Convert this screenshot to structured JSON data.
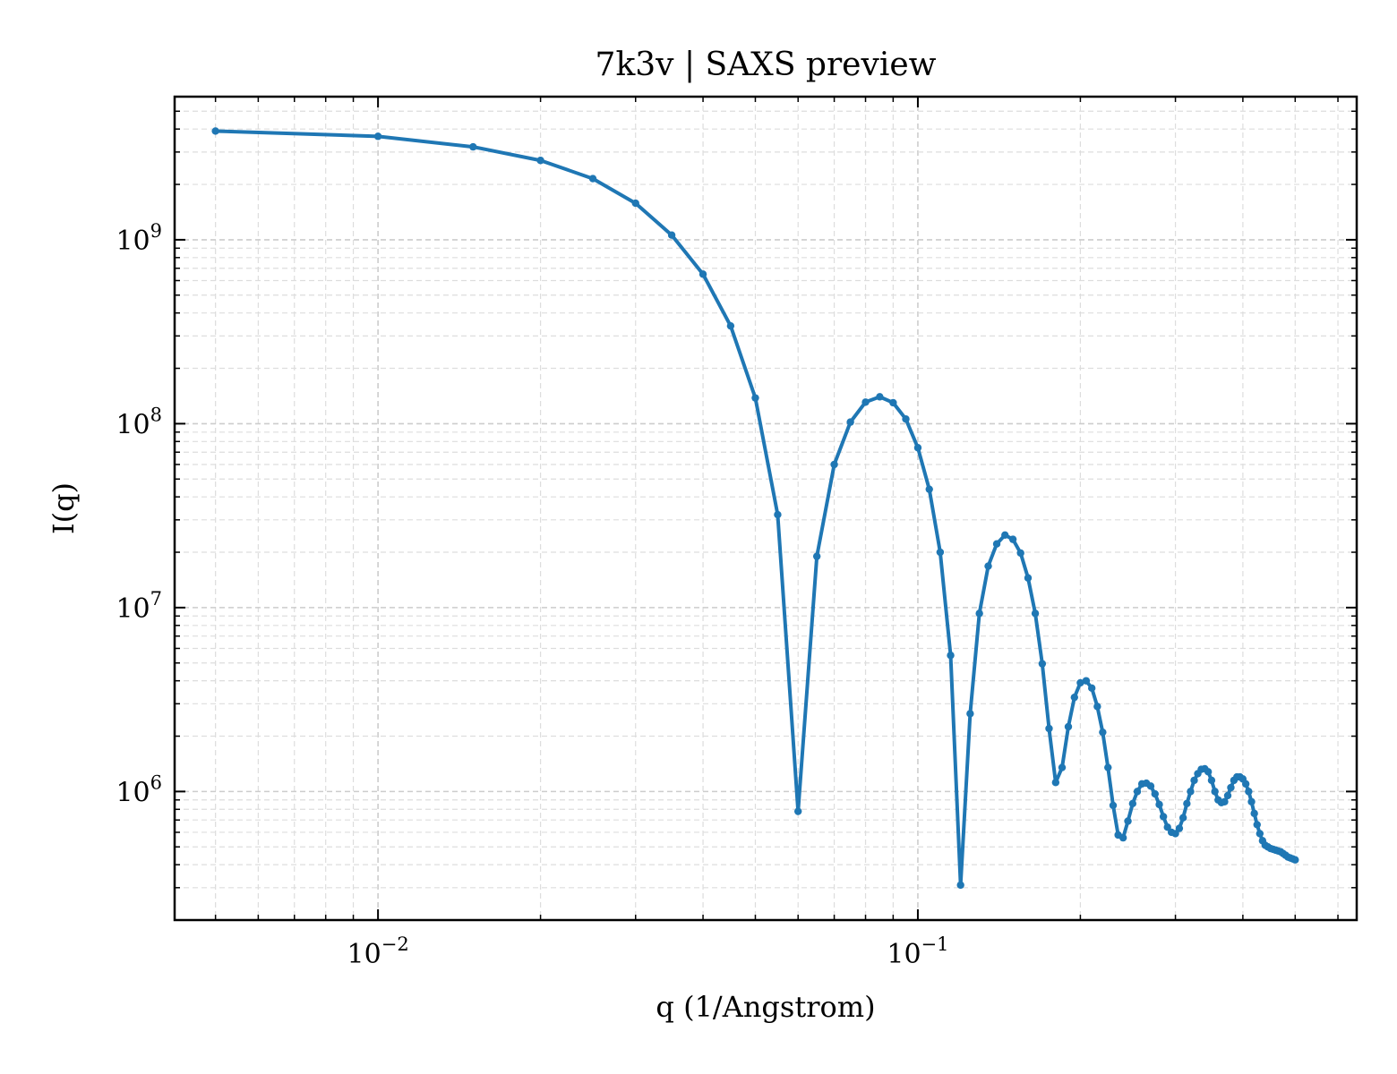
{
  "chart_data": {
    "type": "line",
    "title": "7k3v | SAXS preview",
    "xlabel": "q (1/Angstrom)",
    "ylabel": "I(q)",
    "xscale": "log",
    "yscale": "log",
    "xlim": [
      0.0042,
      0.65
    ],
    "ylim": [
      200000,
      6000000000
    ],
    "grid": true,
    "legend": "none",
    "color": "#1f77b4",
    "x_ticks": [
      {
        "value": 0.01,
        "base": "10",
        "exp": "−2"
      },
      {
        "value": 0.1,
        "base": "10",
        "exp": "−1"
      }
    ],
    "y_ticks": [
      {
        "value": 1000000,
        "base": "10",
        "exp": "6"
      },
      {
        "value": 10000000,
        "base": "10",
        "exp": "7"
      },
      {
        "value": 100000000,
        "base": "10",
        "exp": "8"
      },
      {
        "value": 1000000000,
        "base": "10",
        "exp": "9"
      }
    ],
    "series": [
      {
        "points": [
          [
            0.005,
            3900000000
          ],
          [
            0.01,
            3650000000
          ],
          [
            0.015,
            3200000000
          ],
          [
            0.02,
            2700000000
          ],
          [
            0.025,
            2150000000
          ],
          [
            0.03,
            1580000000
          ],
          [
            0.035,
            1060000000
          ],
          [
            0.04,
            650000000
          ],
          [
            0.045,
            340000000
          ],
          [
            0.05,
            138000000
          ],
          [
            0.055,
            32000000
          ],
          [
            0.06,
            780000
          ],
          [
            0.065,
            19000000
          ],
          [
            0.07,
            60000000
          ],
          [
            0.075,
            102000000
          ],
          [
            0.08,
            131000000
          ],
          [
            0.085,
            140000000
          ],
          [
            0.09,
            130000000
          ],
          [
            0.095,
            106000000
          ],
          [
            0.1,
            74000000
          ],
          [
            0.105,
            44000000
          ],
          [
            0.11,
            20000000
          ],
          [
            0.115,
            5500000
          ],
          [
            0.12,
            310000
          ],
          [
            0.125,
            2650000
          ],
          [
            0.13,
            9300000
          ],
          [
            0.135,
            16800000
          ],
          [
            0.14,
            22200000
          ],
          [
            0.145,
            24800000
          ],
          [
            0.15,
            23500000
          ],
          [
            0.155,
            19800000
          ],
          [
            0.16,
            14500000
          ],
          [
            0.165,
            9300000
          ],
          [
            0.17,
            4950000
          ],
          [
            0.175,
            2200000
          ],
          [
            0.18,
            1120000
          ],
          [
            0.185,
            1350000
          ],
          [
            0.19,
            2250000
          ],
          [
            0.195,
            3250000
          ],
          [
            0.2,
            3900000
          ],
          [
            0.205,
            4000000
          ],
          [
            0.21,
            3650000
          ],
          [
            0.215,
            2900000
          ],
          [
            0.22,
            2100000
          ],
          [
            0.225,
            1350000
          ],
          [
            0.23,
            840000
          ],
          [
            0.235,
            580000
          ],
          [
            0.24,
            560000
          ],
          [
            0.245,
            690000
          ],
          [
            0.25,
            860000
          ],
          [
            0.255,
            1000000
          ],
          [
            0.26,
            1100000
          ],
          [
            0.265,
            1110000
          ],
          [
            0.27,
            1070000
          ],
          [
            0.275,
            970000
          ],
          [
            0.28,
            850000
          ],
          [
            0.285,
            730000
          ],
          [
            0.29,
            640000
          ],
          [
            0.295,
            600000
          ],
          [
            0.3,
            590000
          ],
          [
            0.305,
            630000
          ],
          [
            0.31,
            720000
          ],
          [
            0.315,
            860000
          ],
          [
            0.32,
            1000000
          ],
          [
            0.325,
            1150000
          ],
          [
            0.33,
            1250000
          ],
          [
            0.335,
            1320000
          ],
          [
            0.34,
            1330000
          ],
          [
            0.345,
            1280000
          ],
          [
            0.35,
            1150000
          ],
          [
            0.355,
            1000000
          ],
          [
            0.36,
            900000
          ],
          [
            0.365,
            870000
          ],
          [
            0.37,
            880000
          ],
          [
            0.375,
            950000
          ],
          [
            0.38,
            1050000
          ],
          [
            0.385,
            1150000
          ],
          [
            0.39,
            1200000
          ],
          [
            0.395,
            1200000
          ],
          [
            0.4,
            1170000
          ],
          [
            0.405,
            1100000
          ],
          [
            0.41,
            1000000
          ],
          [
            0.415,
            880000
          ],
          [
            0.42,
            760000
          ],
          [
            0.425,
            660000
          ],
          [
            0.43,
            590000
          ],
          [
            0.435,
            540000
          ],
          [
            0.44,
            510000
          ],
          [
            0.445,
            500000
          ],
          [
            0.45,
            490000
          ],
          [
            0.455,
            485000
          ],
          [
            0.46,
            480000
          ],
          [
            0.465,
            475000
          ],
          [
            0.47,
            470000
          ],
          [
            0.475,
            460000
          ],
          [
            0.48,
            450000
          ],
          [
            0.485,
            440000
          ],
          [
            0.49,
            435000
          ],
          [
            0.495,
            430000
          ],
          [
            0.5,
            425000
          ]
        ]
      }
    ]
  }
}
